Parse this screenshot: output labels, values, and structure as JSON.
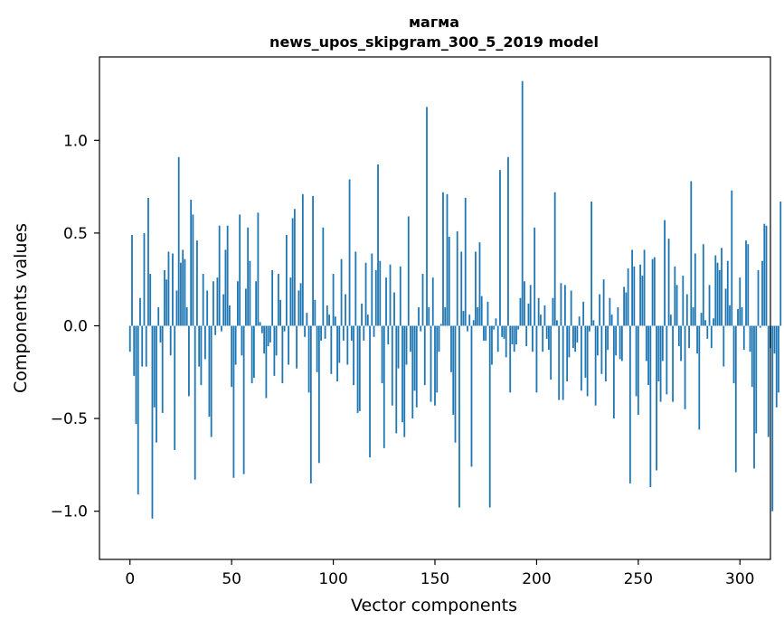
{
  "chart_data": {
    "type": "bar",
    "title": "магма",
    "subtitle": "news_upos_skipgram_300_5_2019 model",
    "xlabel": "Vector components",
    "ylabel": "Components values",
    "xlim": [
      -15,
      315
    ],
    "ylim": [
      -1.26,
      1.45
    ],
    "xticks": [
      0,
      50,
      100,
      150,
      200,
      250,
      300
    ],
    "xtick_labels": [
      "0",
      "50",
      "100",
      "150",
      "200",
      "250",
      "300"
    ],
    "yticks": [
      -1.0,
      -0.5,
      0.0,
      0.5,
      1.0
    ],
    "ytick_labels": [
      "−1.0",
      "−0.5",
      "0.0",
      "0.5",
      "1.0"
    ],
    "grid": false,
    "legend": "none",
    "bar_color": "#1f77b4",
    "values": [
      -0.14,
      0.49,
      -0.27,
      -0.53,
      -0.91,
      0.15,
      -0.22,
      0.5,
      -0.22,
      0.69,
      0.28,
      -1.04,
      -0.44,
      -0.63,
      0.1,
      -0.09,
      -0.47,
      0.3,
      0.25,
      0.4,
      -0.16,
      0.39,
      -0.67,
      0.19,
      0.91,
      0.34,
      0.41,
      0.36,
      0.1,
      -0.38,
      0.68,
      0.6,
      -0.83,
      0.46,
      -0.22,
      -0.32,
      0.28,
      -0.18,
      0.19,
      -0.49,
      -0.6,
      0.24,
      -0.05,
      0.26,
      0.54,
      -0.03,
      0.17,
      0.41,
      0.54,
      0.11,
      -0.33,
      -0.82,
      -0.21,
      0.24,
      0.6,
      -0.16,
      -0.8,
      0.2,
      0.53,
      0.35,
      -0.31,
      -0.28,
      0.24,
      0.61,
      0.02,
      -0.04,
      -0.15,
      -0.39,
      -0.11,
      -0.09,
      0.3,
      -0.27,
      -0.16,
      0.28,
      0.14,
      -0.31,
      -0.03,
      0.49,
      -0.21,
      0.26,
      0.58,
      0.63,
      -0.23,
      0.19,
      0.23,
      0.71,
      -0.06,
      0.07,
      -0.36,
      -0.85,
      0.7,
      0.14,
      -0.25,
      -0.74,
      -0.08,
      0.53,
      -0.07,
      0.11,
      0.06,
      -0.26,
      0.28,
      0.05,
      -0.3,
      -0.2,
      0.36,
      -0.08,
      0.17,
      -0.21,
      0.79,
      -0.08,
      -0.32,
      0.4,
      -0.47,
      -0.46,
      0.12,
      -0.08,
      0.34,
      0.06,
      -0.71,
      0.39,
      -0.06,
      0.3,
      0.87,
      0.35,
      -0.31,
      -0.66,
      0.26,
      -0.1,
      0.33,
      -0.43,
      0.18,
      -0.58,
      -0.23,
      0.32,
      -0.52,
      -0.6,
      -0.21,
      0.59,
      -0.14,
      -0.5,
      -0.35,
      -0.44,
      0.1,
      -0.03,
      0.28,
      -0.32,
      1.18,
      0.1,
      -0.41,
      0.26,
      -0.43,
      -0.36,
      -0.14,
      0.01,
      0.72,
      0.1,
      0.71,
      0.48,
      -0.25,
      -0.48,
      -0.63,
      0.51,
      -0.98,
      0.4,
      0.08,
      0.69,
      -0.03,
      0.06,
      -0.76,
      0.03,
      0.4,
      0.1,
      0.45,
      0.16,
      -0.08,
      -0.08,
      0.13,
      -0.98,
      -0.21,
      -0.02,
      0.04,
      -0.14,
      0.84,
      -0.06,
      -0.07,
      -0.17,
      0.91,
      -0.36,
      -0.1,
      -0.14,
      -0.1,
      -0.02,
      0.15,
      1.32,
      0.24,
      -0.11,
      0.12,
      0.22,
      -0.14,
      0.53,
      -0.36,
      0.15,
      0.06,
      -0.14,
      0.11,
      -0.07,
      -0.13,
      -0.29,
      0.15,
      0.72,
      0.03,
      -0.4,
      0.23,
      -0.4,
      0.22,
      -0.3,
      -0.17,
      0.19,
      -0.12,
      -0.14,
      -0.09,
      0.05,
      -0.35,
      0.13,
      -0.28,
      -0.38,
      -0.03,
      0.67,
      0.03,
      -0.43,
      -0.16,
      0.17,
      -0.26,
      0.25,
      -0.3,
      -0.13,
      0.15,
      0.06,
      -0.5,
      -0.16,
      0.1,
      -0.18,
      -0.19,
      0.21,
      0.18,
      0.31,
      -0.85,
      0.41,
      0.32,
      -0.38,
      -0.48,
      0.33,
      0.27,
      0.41,
      -0.19,
      -0.32,
      -0.87,
      0.36,
      0.37,
      -0.78,
      -0.3,
      -0.41,
      -0.19,
      0.57,
      -0.37,
      0.47,
      0.06,
      -0.41,
      0.32,
      0.22,
      -0.11,
      -0.19,
      0.27,
      -0.45,
      0.17,
      -0.12,
      0.78,
      0.1,
      0.39,
      -0.15,
      -0.56,
      0.07,
      0.44,
      0.03,
      -0.07,
      0.22,
      -0.12,
      0.04,
      0.38,
      0.34,
      0.3,
      0.42,
      -0.22,
      0.2,
      0.35,
      0.11,
      0.73,
      -0.31,
      -0.79,
      0.09,
      0.26,
      0.1,
      -0.13,
      0.46,
      0.44,
      -0.14,
      -0.33,
      -0.77,
      -0.58,
      0.3,
      -0.01,
      0.35,
      0.55,
      0.54,
      -0.6,
      -0.12,
      -1.0,
      -0.15,
      -0.44,
      -0.36,
      0.67
    ]
  }
}
